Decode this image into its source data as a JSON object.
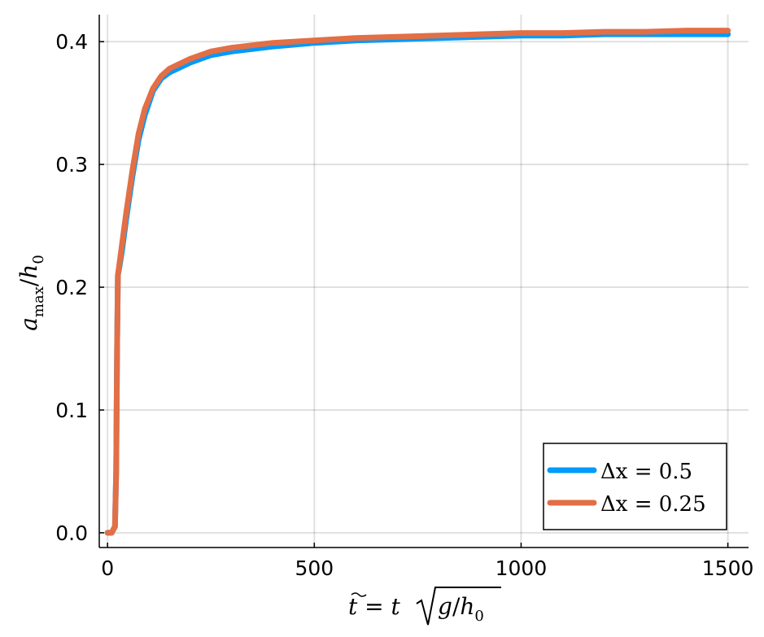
{
  "chart_data": {
    "type": "line",
    "title": "",
    "xlabel": "t̃ = t√(g/h₀)",
    "ylabel": "a_max/h₀",
    "xlim": [
      -20,
      1550
    ],
    "ylim": [
      -0.012,
      0.422
    ],
    "x_ticks": [
      0,
      500,
      1000,
      1500
    ],
    "x_tick_labels": [
      "0",
      "500",
      "1000",
      "1500"
    ],
    "y_ticks": [
      0.0,
      0.1,
      0.2,
      0.3,
      0.4
    ],
    "y_tick_labels": [
      "0.0",
      "0.1",
      "0.2",
      "0.3",
      "0.4"
    ],
    "grid": true,
    "legend_position": "bottom-right",
    "series": [
      {
        "name": "Δx = 0.5",
        "color": "#009AFA",
        "x": [
          0,
          10,
          18,
          21,
          23,
          25,
          28,
          35,
          45,
          60,
          75,
          90,
          110,
          130,
          150,
          200,
          250,
          300,
          400,
          500,
          600,
          700,
          800,
          900,
          1000,
          1100,
          1200,
          1300,
          1400,
          1500
        ],
        "y": [
          0,
          0,
          0.005,
          0.05,
          0.15,
          0.21,
          0.215,
          0.23,
          0.255,
          0.29,
          0.32,
          0.34,
          0.36,
          0.37,
          0.375,
          0.383,
          0.389,
          0.392,
          0.396,
          0.399,
          0.401,
          0.402,
          0.403,
          0.404,
          0.405,
          0.405,
          0.406,
          0.406,
          0.406,
          0.406
        ]
      },
      {
        "name": "Δx = 0.25",
        "color": "#E26F46",
        "x": [
          0,
          10,
          18,
          21,
          23,
          25,
          28,
          35,
          45,
          60,
          75,
          90,
          110,
          130,
          150,
          200,
          250,
          300,
          400,
          500,
          600,
          700,
          800,
          900,
          1000,
          1100,
          1200,
          1300,
          1400,
          1500
        ],
        "y": [
          0,
          0,
          0.005,
          0.05,
          0.15,
          0.21,
          0.217,
          0.235,
          0.26,
          0.295,
          0.325,
          0.345,
          0.362,
          0.372,
          0.378,
          0.386,
          0.392,
          0.395,
          0.399,
          0.401,
          0.403,
          0.404,
          0.405,
          0.406,
          0.407,
          0.407,
          0.408,
          0.408,
          0.409,
          0.409
        ]
      }
    ]
  }
}
